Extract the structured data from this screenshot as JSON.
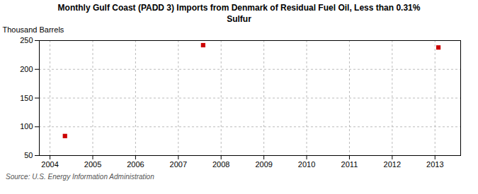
{
  "chart_data": {
    "type": "scatter",
    "title": "Monthly Gulf Coast (PADD 3) Imports from Denmark of Residual Fuel Oil, Less than 0.31%\nSulfur",
    "ylabel": "Thousand Barrels",
    "source": "Source: U.S. Energy Information Administration",
    "x": [
      2004.35,
      2007.58,
      2013.08
    ],
    "values": [
      84,
      242,
      238
    ],
    "color": "#CC0000",
    "marker": "square",
    "xlim": [
      2003.75,
      2013.6
    ],
    "ylim": [
      50,
      250
    ],
    "xticks": [
      2004,
      2005,
      2006,
      2007,
      2008,
      2009,
      2010,
      2011,
      2012,
      2013
    ],
    "yticks": [
      50,
      100,
      150,
      200,
      250
    ],
    "grid": true
  }
}
